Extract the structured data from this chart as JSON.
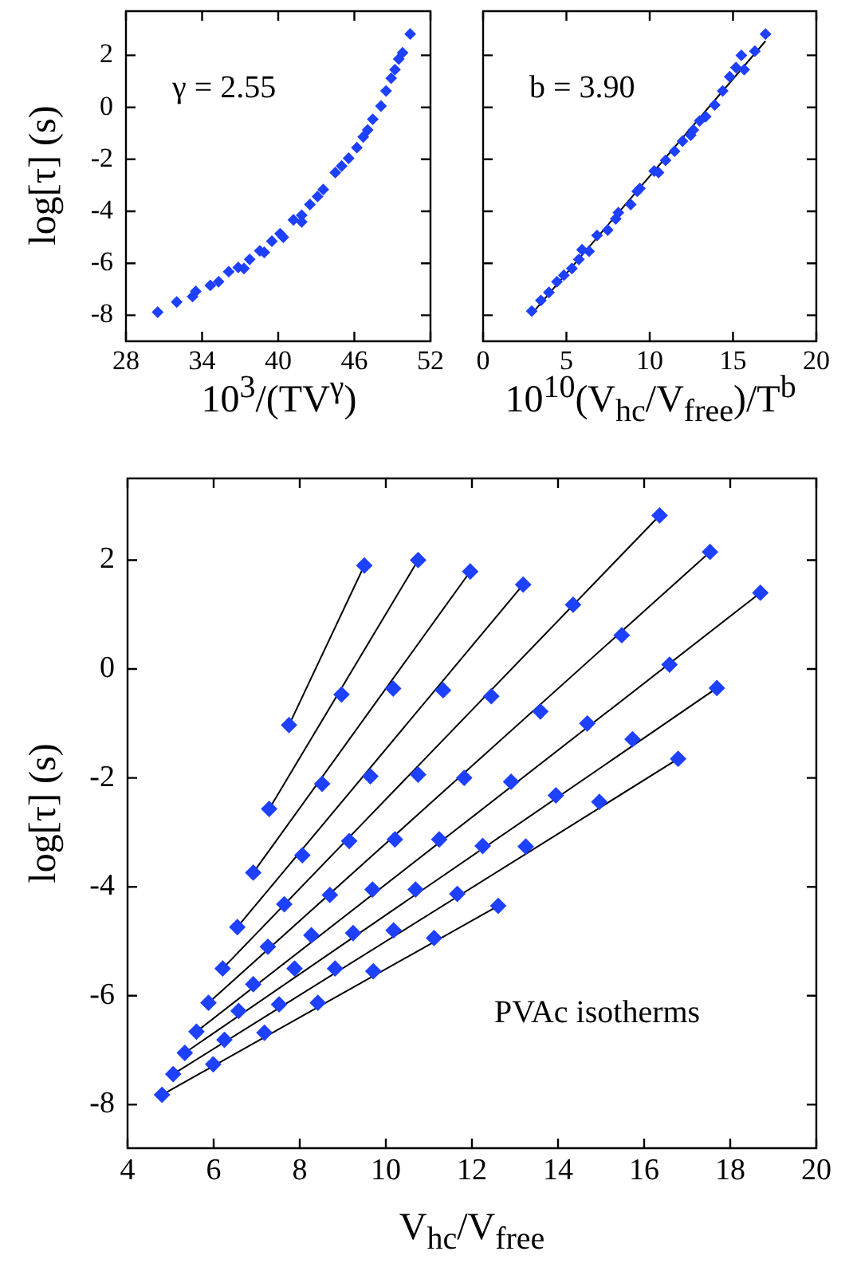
{
  "chart_data": [
    {
      "type": "scatter",
      "xlabel": "10$^{3}$/(TV$^{γ}$)",
      "ylabel": "log[τ]  (s)",
      "annotations": [
        "γ = 2.55"
      ],
      "color": "#1e40ff",
      "marker": "diamond",
      "grid": false,
      "xlim": [
        28,
        52
      ],
      "xticks": [
        28,
        34,
        40,
        46,
        52
      ],
      "ylim": [
        -9,
        3.7
      ],
      "yticks": [
        -8,
        -6,
        -4,
        -2,
        0,
        2
      ],
      "x": [
        30.5,
        32.0,
        33.25,
        33.5,
        34.65,
        35.3,
        36.1,
        36.85,
        37.3,
        37.75,
        38.55,
        38.9,
        39.5,
        40.15,
        40.4,
        41.2,
        41.85,
        41.85,
        42.5,
        43.1,
        43.55,
        44.5,
        45.0,
        45.55,
        46.2,
        46.7,
        47.05,
        47.45,
        48.1,
        48.5,
        48.9,
        49.2,
        49.5,
        49.8,
        50.4
      ],
      "values": [
        -7.88,
        -7.49,
        -7.28,
        -7.08,
        -6.85,
        -6.71,
        -6.32,
        -6.16,
        -6.2,
        -5.85,
        -5.52,
        -5.58,
        -5.15,
        -4.86,
        -5.0,
        -4.33,
        -4.15,
        -4.41,
        -3.74,
        -3.43,
        -3.16,
        -2.51,
        -2.26,
        -1.96,
        -1.55,
        -1.14,
        -0.87,
        -0.46,
        0.05,
        0.63,
        1.12,
        1.45,
        1.86,
        2.1,
        2.82
      ]
    },
    {
      "type": "scatter",
      "xlabel": "10$^{10}$(V$_{hc}$/V$_{free}$)/T$^{b}$",
      "annotations": [
        "b = 3.90"
      ],
      "marker": "diamond",
      "grid": false,
      "tick_labels": "x",
      "xlim": [
        0,
        20
      ],
      "xticks": [
        0,
        5,
        10,
        15,
        20
      ],
      "ylim": [
        -9,
        3.7
      ],
      "yticks": [
        -8,
        -6,
        -4,
        -2,
        0,
        2
      ],
      "series": [
        {
          "color": "#1e40ff",
          "x": [
            2.92,
            3.47,
            3.95,
            4.43,
            4.85,
            5.33,
            5.75,
            5.94,
            6.36,
            6.84,
            7.48,
            7.96,
            8.12,
            8.86,
            9.25,
            9.41,
            10.27,
            10.53,
            10.95,
            11.49,
            11.97,
            12.46,
            12.62,
            13.0,
            13.36,
            13.9,
            14.38,
            14.8,
            15.18,
            15.5,
            15.67,
            16.31,
            16.95
          ],
          "values": [
            -7.84,
            -7.43,
            -7.12,
            -6.71,
            -6.46,
            -6.2,
            -5.85,
            -5.48,
            -5.54,
            -4.93,
            -4.72,
            -4.29,
            -4.05,
            -3.74,
            -3.23,
            -3.12,
            -2.45,
            -2.51,
            -2.04,
            -1.69,
            -1.3,
            -1.07,
            -0.87,
            -0.52,
            -0.36,
            0.09,
            0.63,
            1.18,
            1.53,
            2.0,
            1.45,
            2.16,
            2.82
          ]
        },
        {
          "type": "line",
          "color": "#000000",
          "marker": "none",
          "x": [
            2.98,
            16.95
          ],
          "values": [
            -7.9,
            2.55
          ]
        }
      ]
    },
    {
      "type": "scatter",
      "xlabel": "V$_{hc}$/V$_{free}$",
      "ylabel": "log[τ]  (s)",
      "annotations": [
        "PVAc isotherms"
      ],
      "marker": "diamond",
      "grid": false,
      "xlim": [
        4,
        20
      ],
      "xticks": [
        4,
        6,
        8,
        10,
        12,
        14,
        16,
        18,
        20
      ],
      "ylim": [
        -8.8,
        3.5
      ],
      "yticks": [
        -8,
        -6,
        -4,
        -2,
        0,
        2
      ],
      "series": [
        {
          "color": "#1e40ff",
          "x": [
            7.75,
            9.5
          ],
          "values": [
            -1.03,
            1.9
          ]
        },
        {
          "color": "#1e40ff",
          "x": [
            7.29,
            8.97,
            10.75
          ],
          "values": [
            -2.57,
            -0.47,
            2.0
          ]
        },
        {
          "color": "#1e40ff",
          "x": [
            6.92,
            8.52,
            10.17,
            11.96
          ],
          "values": [
            -3.74,
            -2.11,
            -0.36,
            1.79
          ]
        },
        {
          "color": "#1e40ff",
          "x": [
            6.55,
            8.06,
            9.64,
            11.33,
            13.19
          ],
          "values": [
            -4.74,
            -3.42,
            -1.97,
            -0.39,
            1.55
          ]
        },
        {
          "color": "#1e40ff",
          "x": [
            6.21,
            7.64,
            9.15,
            10.75,
            12.45,
            14.35,
            16.36
          ],
          "values": [
            -5.5,
            -4.32,
            -3.16,
            -1.94,
            -0.5,
            1.18,
            2.82
          ]
        },
        {
          "color": "#1e40ff",
          "x": [
            5.88,
            7.26,
            8.7,
            10.21,
            11.82,
            13.59,
            15.48,
            17.53
          ],
          "values": [
            -6.13,
            -5.1,
            -4.15,
            -3.13,
            -2.0,
            -0.78,
            0.62,
            2.15
          ]
        },
        {
          "color": "#1e40ff",
          "x": [
            5.6,
            6.92,
            8.27,
            9.69,
            11.24,
            12.91,
            14.68,
            16.59,
            18.7
          ],
          "values": [
            -6.66,
            -5.79,
            -4.89,
            -4.05,
            -3.13,
            -2.07,
            -1.0,
            0.08,
            1.4
          ]
        },
        {
          "color": "#1e40ff",
          "x": [
            5.33,
            6.58,
            7.88,
            9.24,
            10.69,
            12.25,
            13.95,
            15.73,
            17.69
          ],
          "values": [
            -7.05,
            -6.28,
            -5.5,
            -4.85,
            -4.05,
            -3.25,
            -2.32,
            -1.29,
            -0.35
          ]
        },
        {
          "color": "#1e40ff",
          "x": [
            5.06,
            6.25,
            7.52,
            8.82,
            10.18,
            11.66,
            13.25,
            14.96,
            16.79
          ],
          "values": [
            -7.44,
            -6.81,
            -6.16,
            -5.5,
            -4.8,
            -4.13,
            -3.26,
            -2.44,
            -1.65
          ]
        },
        {
          "color": "#1e40ff",
          "x": [
            4.8,
            5.99,
            7.18,
            8.42,
            9.71,
            11.12,
            12.61
          ],
          "values": [
            -7.82,
            -7.26,
            -6.68,
            -6.13,
            -5.55,
            -4.94,
            -4.35
          ]
        },
        {
          "type": "line",
          "color": "#000000",
          "marker": "none",
          "x": [
            7.75,
            9.5
          ],
          "values": [
            -1.03,
            1.9
          ]
        },
        {
          "type": "line",
          "color": "#000000",
          "marker": "none",
          "x": [
            7.29,
            10.75
          ],
          "values": [
            -2.57,
            2.0
          ]
        },
        {
          "type": "line",
          "color": "#000000",
          "marker": "none",
          "x": [
            6.92,
            11.96
          ],
          "values": [
            -3.74,
            1.79
          ]
        },
        {
          "type": "line",
          "color": "#000000",
          "marker": "none",
          "x": [
            6.55,
            13.19
          ],
          "values": [
            -4.74,
            1.55
          ]
        },
        {
          "type": "line",
          "color": "#000000",
          "marker": "none",
          "x": [
            6.21,
            16.36
          ],
          "values": [
            -5.5,
            2.82
          ]
        },
        {
          "type": "line",
          "color": "#000000",
          "marker": "none",
          "x": [
            5.88,
            17.53
          ],
          "values": [
            -6.13,
            2.15
          ]
        },
        {
          "type": "line",
          "color": "#000000",
          "marker": "none",
          "x": [
            5.6,
            18.7
          ],
          "values": [
            -6.66,
            1.4
          ]
        },
        {
          "type": "line",
          "color": "#000000",
          "marker": "none",
          "x": [
            5.33,
            17.69
          ],
          "values": [
            -7.05,
            -0.35
          ]
        },
        {
          "type": "line",
          "color": "#000000",
          "marker": "none",
          "x": [
            5.06,
            16.79
          ],
          "values": [
            -7.44,
            -1.65
          ]
        },
        {
          "type": "line",
          "color": "#000000",
          "marker": "none",
          "x": [
            4.8,
            12.61
          ],
          "values": [
            -7.82,
            -4.35
          ]
        }
      ]
    }
  ]
}
